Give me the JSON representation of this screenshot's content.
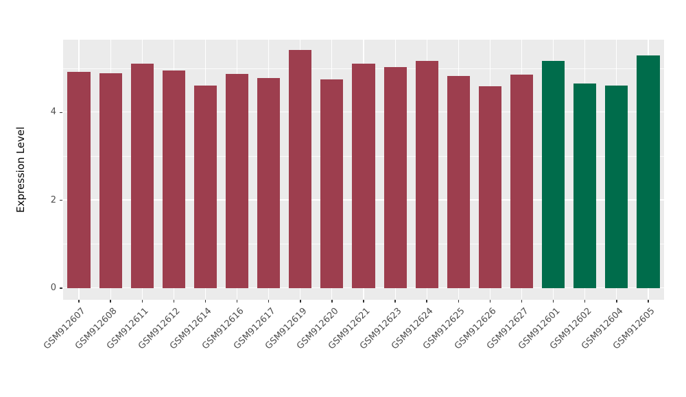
{
  "chart_data": {
    "type": "bar",
    "title": "",
    "xlabel": "",
    "ylabel": "Expression Level",
    "categories": [
      "GSM912607",
      "GSM912608",
      "GSM912611",
      "GSM912612",
      "GSM912614",
      "GSM912616",
      "GSM912617",
      "GSM912619",
      "GSM912620",
      "GSM912621",
      "GSM912623",
      "GSM912624",
      "GSM912625",
      "GSM912626",
      "GSM912627",
      "GSM912601",
      "GSM912602",
      "GSM912604",
      "GSM912605"
    ],
    "values": [
      4.93,
      4.9,
      5.12,
      4.96,
      4.62,
      4.88,
      4.78,
      5.42,
      4.75,
      5.12,
      5.03,
      5.18,
      4.83,
      4.6,
      4.86,
      5.18,
      4.66,
      4.62,
      5.3
    ],
    "bar_colors": [
      "#9d3e4e",
      "#9d3e4e",
      "#9d3e4e",
      "#9d3e4e",
      "#9d3e4e",
      "#9d3e4e",
      "#9d3e4e",
      "#9d3e4e",
      "#9d3e4e",
      "#9d3e4e",
      "#9d3e4e",
      "#9d3e4e",
      "#9d3e4e",
      "#9d3e4e",
      "#9d3e4e",
      "#006c4b",
      "#006c4b",
      "#006c4b",
      "#006c4b"
    ],
    "ylim": [
      0,
      5.66
    ],
    "yticks": [
      0,
      2,
      4
    ],
    "minor_yticks": [
      1,
      3,
      5
    ],
    "grid": "on",
    "legend": "none",
    "panel_background": "#ebebeb",
    "grid_color": "#ffffff",
    "bar_width_fraction": 0.72,
    "x_label_rotation_deg": 45
  }
}
